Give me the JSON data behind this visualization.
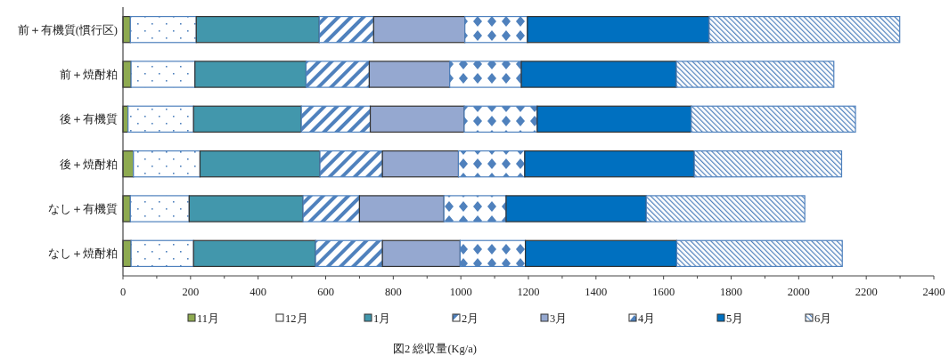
{
  "chart_data": {
    "type": "bar",
    "orientation": "horizontal",
    "stacked": true,
    "title": "図2  総収量(Kg/a)",
    "categories": [
      "前＋有機質(慣行区)",
      "前＋焼酎粕",
      "後＋有機質",
      "後＋焼酎粕",
      "なし＋有機質",
      "なし＋焼酎粕"
    ],
    "series": [
      {
        "name": "11月",
        "color": "#8eaa50",
        "values": [
          22,
          24,
          15,
          31,
          22,
          24
        ]
      },
      {
        "name": "12月",
        "color": "#4f81bd",
        "values": [
          195,
          189,
          194,
          197,
          174,
          185
        ]
      },
      {
        "name": "1月",
        "color": "#4297ac",
        "values": [
          364,
          329,
          319,
          355,
          337,
          361
        ]
      },
      {
        "name": "2月",
        "color": "#4f81bd",
        "values": [
          161,
          187,
          204,
          185,
          167,
          198
        ]
      },
      {
        "name": "3月",
        "color": "#95a8d0",
        "values": [
          270,
          238,
          278,
          225,
          250,
          230
        ]
      },
      {
        "name": "4月",
        "color": "#4f81bd",
        "values": [
          185,
          212,
          216,
          196,
          184,
          193
        ]
      },
      {
        "name": "5月",
        "color": "#0070c0",
        "values": [
          538,
          459,
          456,
          502,
          415,
          448
        ]
      },
      {
        "name": "6月",
        "color": "#4f81bd",
        "values": [
          564,
          466,
          486,
          436,
          469,
          490
        ]
      }
    ],
    "xlim": [
      0,
      2400
    ],
    "xticks": [
      0,
      {
        "value": 100,
        "label": null
      },
      200,
      {
        "value": 300,
        "label": null
      },
      400,
      {
        "value": 500,
        "label": null
      },
      600,
      {
        "value": 700,
        "label": null
      },
      800,
      {
        "value": 900,
        "label": null
      },
      1000,
      {
        "value": 1100,
        "label": null
      },
      1200,
      {
        "value": 1300,
        "label": null
      },
      1400,
      {
        "value": 1500,
        "label": null
      },
      1600,
      {
        "value": 1700,
        "label": null
      },
      1800,
      {
        "value": 1900,
        "label": null
      },
      2000,
      {
        "value": 2100,
        "label": null
      },
      2200,
      {
        "value": 2300,
        "label": null
      },
      2400
    ],
    "grid": false,
    "legend": "bottom"
  }
}
